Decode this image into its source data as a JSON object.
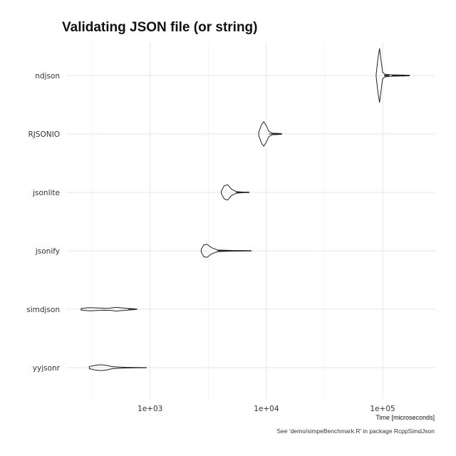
{
  "chart_data": {
    "type": "violin",
    "title": "Validating JSON file (or string)",
    "xlabel": "Time [microseconds]",
    "caption": "See 'demo/simpeBenchmark.R' in package RcppSimdJson",
    "xscale": "log10",
    "xlim": [
      190,
      280000
    ],
    "xticks": [
      1000,
      10000,
      100000
    ],
    "xtick_labels": [
      "1e+03",
      "1e+04",
      "1e+05"
    ],
    "grid": true,
    "categories": [
      "ndjson",
      "RJSONIO",
      "jsonlite",
      "jsonify",
      "simdjson",
      "yyjsonr"
    ],
    "series": [
      {
        "category": "ndjson",
        "min": 88000,
        "max": 170000,
        "profile": [
          [
            88000,
            0.05
          ],
          [
            91000,
            0.6
          ],
          [
            94000,
            1.0
          ],
          [
            97000,
            0.55
          ],
          [
            100000,
            0.12
          ],
          [
            105000,
            0.05
          ],
          [
            120000,
            0.025
          ],
          [
            150000,
            0.015
          ],
          [
            170000,
            0.01
          ]
        ],
        "outliers": [
          105000,
          108000,
          112000,
          130000,
          150000
        ]
      },
      {
        "category": "RJSONIO",
        "min": 8600,
        "max": 13500,
        "profile": [
          [
            8600,
            0.06
          ],
          [
            9100,
            0.35
          ],
          [
            9500,
            0.45
          ],
          [
            10000,
            0.3
          ],
          [
            10500,
            0.1
          ],
          [
            11200,
            0.03
          ],
          [
            13500,
            0.015
          ]
        ],
        "outliers": [
          12500
        ]
      },
      {
        "category": "jsonlite",
        "min": 4100,
        "max": 7100,
        "profile": [
          [
            4100,
            0.05
          ],
          [
            4350,
            0.25
          ],
          [
            4650,
            0.28
          ],
          [
            5000,
            0.12
          ],
          [
            5500,
            0.03
          ],
          [
            6200,
            0.012
          ],
          [
            7100,
            0.008
          ]
        ],
        "outliers": []
      },
      {
        "category": "jsonify",
        "min": 2750,
        "max": 7400,
        "profile": [
          [
            2750,
            0.05
          ],
          [
            2900,
            0.22
          ],
          [
            3100,
            0.24
          ],
          [
            3350,
            0.12
          ],
          [
            3800,
            0.03
          ],
          [
            5000,
            0.012
          ],
          [
            7400,
            0.008
          ]
        ],
        "outliers": []
      },
      {
        "category": "simdjson",
        "min": 255,
        "max": 770,
        "profile": [
          [
            255,
            0.03
          ],
          [
            300,
            0.06
          ],
          [
            340,
            0.05
          ],
          [
            400,
            0.035
          ],
          [
            450,
            0.04
          ],
          [
            510,
            0.07
          ],
          [
            570,
            0.05
          ],
          [
            650,
            0.03
          ],
          [
            720,
            0.015
          ],
          [
            770,
            0.005
          ]
        ],
        "outliers": []
      },
      {
        "category": "yyjsonr",
        "min": 300,
        "max": 930,
        "profile": [
          [
            300,
            0.04
          ],
          [
            340,
            0.09
          ],
          [
            380,
            0.11
          ],
          [
            430,
            0.08
          ],
          [
            470,
            0.04
          ],
          [
            520,
            0.025
          ],
          [
            600,
            0.012
          ],
          [
            750,
            0.006
          ],
          [
            930,
            0.004
          ]
        ],
        "outliers": []
      }
    ]
  }
}
